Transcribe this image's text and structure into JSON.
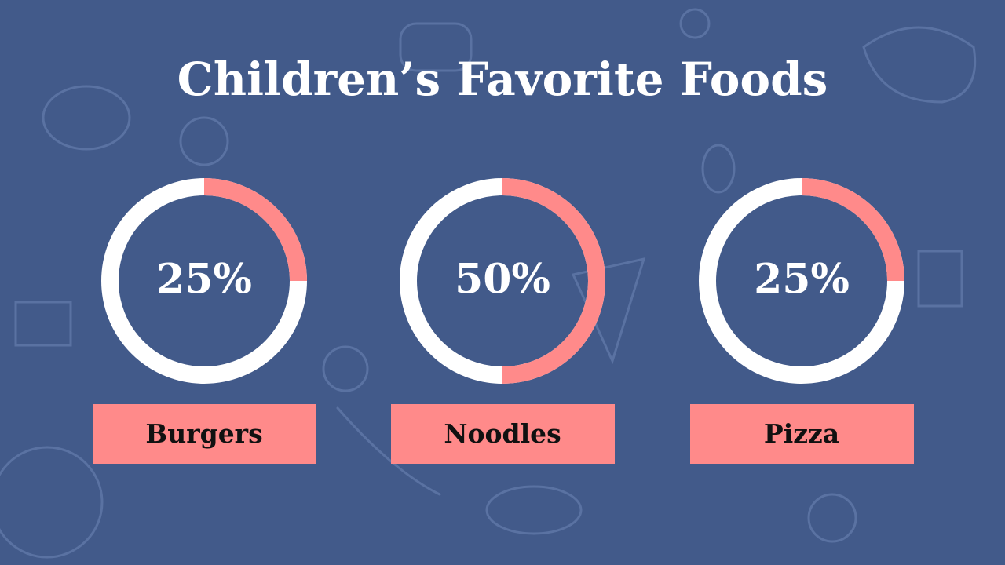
{
  "title": "Children’s Favorite Foods",
  "chart_data": [
    {
      "type": "donut",
      "categories": [
        "Burgers"
      ],
      "values": [
        25
      ],
      "value_labels": [
        "25%"
      ],
      "color": "#ff8a8a"
    },
    {
      "type": "donut",
      "categories": [
        "Noodles"
      ],
      "values": [
        50
      ],
      "value_labels": [
        "50%"
      ],
      "color": "#ff8a8a"
    },
    {
      "type": "donut",
      "categories": [
        "Pizza"
      ],
      "values": [
        25
      ],
      "value_labels": [
        "25%"
      ],
      "color": "#ff8a8a"
    }
  ]
}
